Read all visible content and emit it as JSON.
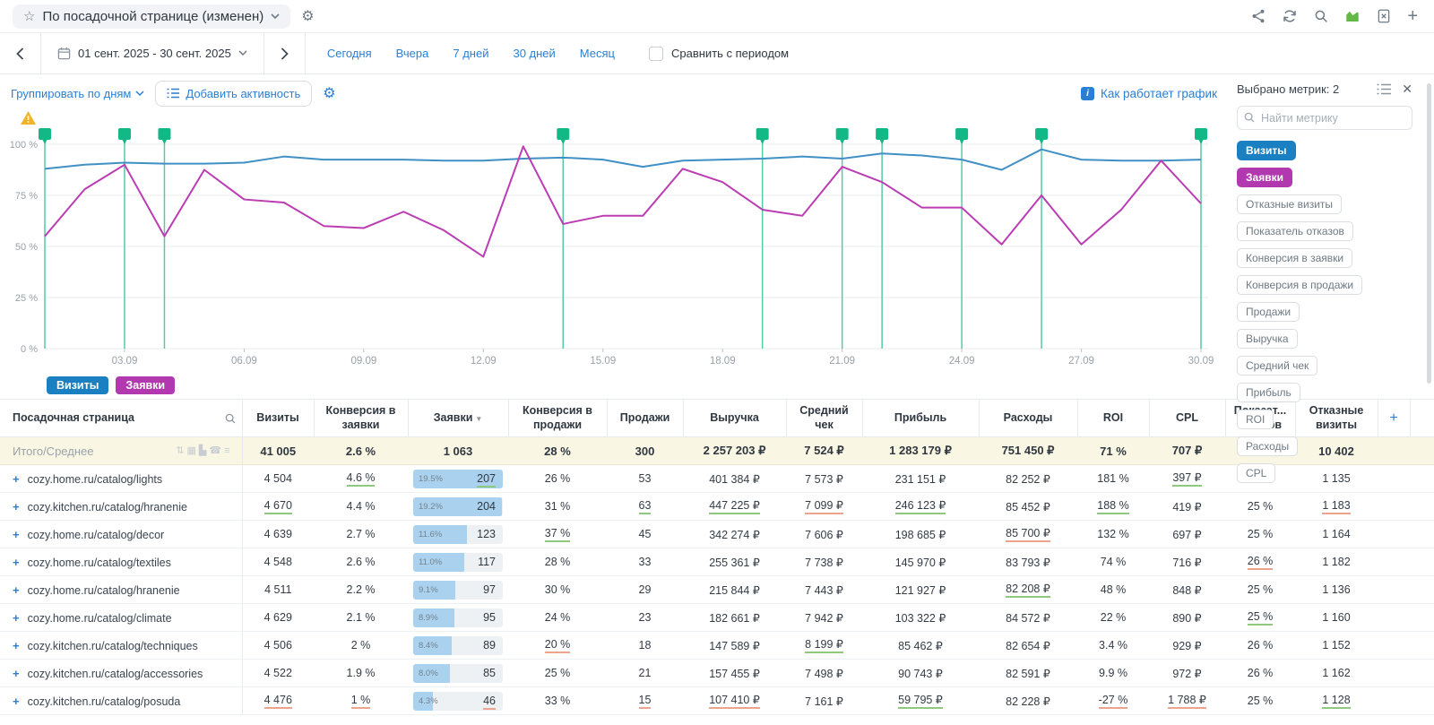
{
  "topbar": {
    "title": "По посадочной странице (изменен)",
    "icons": [
      "share",
      "refresh",
      "search",
      "chart-view",
      "excel-export",
      "add"
    ]
  },
  "toolbar": {
    "date_range": "01 сент. 2025 - 30 сент. 2025",
    "quick_links": [
      "Сегодня",
      "Вчера",
      "7 дней",
      "30 дней",
      "Месяц"
    ],
    "compare_label": "Сравнить с периодом"
  },
  "chart_controls": {
    "group_by": "Группировать по дням",
    "add_activity": "Добавить активность",
    "how_it_works": "Как работает график"
  },
  "metrics_panel": {
    "selected_label": "Выбрано метрик: 2",
    "search_placeholder": "Найти метрику",
    "chips": [
      {
        "label": "Визиты",
        "state": "blue"
      },
      {
        "label": "Заявки",
        "state": "magenta"
      },
      {
        "label": "Отказные визиты"
      },
      {
        "label": "Показатель отказов"
      },
      {
        "label": "Конверсия в заявки"
      },
      {
        "label": "Конверсия в продажи"
      },
      {
        "label": "Продажи"
      },
      {
        "label": "Выручка"
      },
      {
        "label": "Средний чек"
      },
      {
        "label": "Прибыль"
      },
      {
        "label": "ROI"
      },
      {
        "label": "Расходы"
      },
      {
        "label": "CPL"
      }
    ]
  },
  "chart_data": {
    "type": "line",
    "x": [
      "01.09",
      "02.09",
      "03.09",
      "04.09",
      "05.09",
      "06.09",
      "07.09",
      "08.09",
      "09.09",
      "10.09",
      "11.09",
      "12.09",
      "13.09",
      "14.09",
      "15.09",
      "16.09",
      "17.09",
      "18.09",
      "19.09",
      "20.09",
      "21.09",
      "22.09",
      "23.09",
      "24.09",
      "25.09",
      "26.09",
      "27.09",
      "28.09",
      "29.09",
      "30.09"
    ],
    "x_tick_labels": [
      "03.09",
      "06.09",
      "09.09",
      "12.09",
      "15.09",
      "18.09",
      "21.09",
      "24.09",
      "27.09",
      "30.09"
    ],
    "y_tick_labels": [
      "0 %",
      "25 %",
      "50 %",
      "75 %",
      "100 %"
    ],
    "ylim": [
      0,
      100
    ],
    "grid": true,
    "legend_position": "bottom-left",
    "series": [
      {
        "name": "Визиты",
        "color": "#4090c5",
        "values": [
          88,
          90,
          91,
          90.5,
          90.5,
          91,
          94,
          92.5,
          92.5,
          92.5,
          92,
          92,
          93,
          93.5,
          92.5,
          89,
          92,
          92.5,
          93,
          94,
          93,
          95.5,
          94.5,
          92.5,
          87.5,
          97.5,
          92.5,
          92,
          92,
          92.5
        ]
      },
      {
        "name": "Заявки",
        "color": "#bb3cb3",
        "values": [
          55,
          78,
          90,
          55,
          87.5,
          73,
          71.5,
          60,
          59,
          67,
          58,
          45,
          99,
          61,
          65,
          65,
          88,
          81.5,
          68,
          65,
          89,
          81.5,
          69,
          69,
          51,
          75,
          51,
          68,
          92,
          71
        ]
      }
    ],
    "event_marker_days": [
      1,
      3,
      4,
      14,
      19,
      21,
      22,
      24,
      26,
      30
    ],
    "event_marker_color": "#12b886"
  },
  "legend": [
    {
      "label": "Визиты",
      "color": "#1a80c2"
    },
    {
      "label": "Заявки",
      "color": "#b238b0"
    }
  ],
  "table": {
    "columns": [
      "Посадочная страница",
      "Визиты",
      "Конверсия в заявки",
      "Заявки",
      "Конверсия в продажи",
      "Продажи",
      "Выручка",
      "Средний чек",
      "Прибыль",
      "Расходы",
      "ROI",
      "CPL",
      "Показат... отказов",
      "Отказные визиты"
    ],
    "sorted_column": "Заявки",
    "add_label": "+",
    "totals_label": "Итого/Среднее",
    "totals_icons": [
      "sort",
      "grid",
      "chart",
      "phone",
      "list"
    ],
    "totals": [
      "41 005",
      "2.6 %",
      "1 063",
      "28 %",
      "300",
      "2 257 203 ₽",
      "7 524 ₽",
      "1 283 179 ₽",
      "751 450 ₽",
      "71 %",
      "707 ₽",
      "25 %",
      "10 402"
    ],
    "rows": [
      {
        "page": "cozy.home.ru/catalog/lights",
        "cells": [
          {
            "t": "4 504"
          },
          {
            "t": "4.6 %",
            "u": "g"
          },
          {
            "bar": true,
            "pct": "19.5%",
            "t": "207",
            "fill": 1.0,
            "u": "g"
          },
          {
            "t": "26 %"
          },
          {
            "t": "53"
          },
          {
            "t": "401 384 ₽"
          },
          {
            "t": "7 573 ₽"
          },
          {
            "t": "231 151 ₽"
          },
          {
            "t": "82 252 ₽"
          },
          {
            "t": "181 %"
          },
          {
            "t": "397 ₽",
            "u": "g"
          },
          {
            "t": "25 %"
          },
          {
            "t": "1 135"
          }
        ]
      },
      {
        "page": "cozy.kitchen.ru/catalog/hranenie",
        "cells": [
          {
            "t": "4 670",
            "u": "g"
          },
          {
            "t": "4.4 %"
          },
          {
            "bar": true,
            "pct": "19.2%",
            "t": "204",
            "fill": 0.985
          },
          {
            "t": "31 %"
          },
          {
            "t": "63",
            "u": "g"
          },
          {
            "t": "447 225 ₽",
            "u": "g"
          },
          {
            "t": "7 099 ₽",
            "u": "r"
          },
          {
            "t": "246 123 ₽",
            "u": "g"
          },
          {
            "t": "85 452 ₽"
          },
          {
            "t": "188 %",
            "u": "g"
          },
          {
            "t": "419 ₽"
          },
          {
            "t": "25 %"
          },
          {
            "t": "1 183",
            "u": "r"
          }
        ]
      },
      {
        "page": "cozy.home.ru/catalog/decor",
        "cells": [
          {
            "t": "4 639"
          },
          {
            "t": "2.7 %"
          },
          {
            "bar": true,
            "pct": "11.6%",
            "t": "123",
            "fill": 0.595
          },
          {
            "t": "37 %",
            "u": "g"
          },
          {
            "t": "45"
          },
          {
            "t": "342 274 ₽"
          },
          {
            "t": "7 606 ₽"
          },
          {
            "t": "198 685 ₽"
          },
          {
            "t": "85 700 ₽",
            "u": "r"
          },
          {
            "t": "132 %"
          },
          {
            "t": "697 ₽"
          },
          {
            "t": "25 %"
          },
          {
            "t": "1 164"
          }
        ]
      },
      {
        "page": "cozy.home.ru/catalog/textiles",
        "cells": [
          {
            "t": "4 548"
          },
          {
            "t": "2.6 %"
          },
          {
            "bar": true,
            "pct": "11.0%",
            "t": "117",
            "fill": 0.565
          },
          {
            "t": "28 %"
          },
          {
            "t": "33"
          },
          {
            "t": "255 361 ₽"
          },
          {
            "t": "7 738 ₽"
          },
          {
            "t": "145 970 ₽"
          },
          {
            "t": "83 793 ₽"
          },
          {
            "t": "74 %"
          },
          {
            "t": "716 ₽"
          },
          {
            "t": "26 %",
            "u": "r"
          },
          {
            "t": "1 182"
          }
        ]
      },
      {
        "page": "cozy.home.ru/catalog/hranenie",
        "cells": [
          {
            "t": "4 511"
          },
          {
            "t": "2.2 %"
          },
          {
            "bar": true,
            "pct": "9.1%",
            "t": "97",
            "fill": 0.467
          },
          {
            "t": "30 %"
          },
          {
            "t": "29"
          },
          {
            "t": "215 844 ₽"
          },
          {
            "t": "7 443 ₽"
          },
          {
            "t": "121 927 ₽"
          },
          {
            "t": "82 208 ₽",
            "u": "g"
          },
          {
            "t": "48 %"
          },
          {
            "t": "848 ₽"
          },
          {
            "t": "25 %"
          },
          {
            "t": "1 136"
          }
        ]
      },
      {
        "page": "cozy.home.ru/catalog/climate",
        "cells": [
          {
            "t": "4 629"
          },
          {
            "t": "2.1 %"
          },
          {
            "bar": true,
            "pct": "8.9%",
            "t": "95",
            "fill": 0.456
          },
          {
            "t": "24 %"
          },
          {
            "t": "23"
          },
          {
            "t": "182 661 ₽"
          },
          {
            "t": "7 942 ₽"
          },
          {
            "t": "103 322 ₽"
          },
          {
            "t": "84 572 ₽"
          },
          {
            "t": "22 %"
          },
          {
            "t": "890 ₽"
          },
          {
            "t": "25 %",
            "u": "g"
          },
          {
            "t": "1 160"
          }
        ]
      },
      {
        "page": "cozy.kitchen.ru/catalog/techniques",
        "cells": [
          {
            "t": "4 506"
          },
          {
            "t": "2 %"
          },
          {
            "bar": true,
            "pct": "8.4%",
            "t": "89",
            "fill": 0.431
          },
          {
            "t": "20 %",
            "u": "r"
          },
          {
            "t": "18"
          },
          {
            "t": "147 589 ₽"
          },
          {
            "t": "8 199 ₽",
            "u": "g"
          },
          {
            "t": "85 462 ₽"
          },
          {
            "t": "82 654 ₽"
          },
          {
            "t": "3.4 %"
          },
          {
            "t": "929 ₽"
          },
          {
            "t": "26 %"
          },
          {
            "t": "1 152"
          }
        ]
      },
      {
        "page": "cozy.kitchen.ru/catalog/accessories",
        "cells": [
          {
            "t": "4 522"
          },
          {
            "t": "1.9 %"
          },
          {
            "bar": true,
            "pct": "8.0%",
            "t": "85",
            "fill": 0.41
          },
          {
            "t": "25 %"
          },
          {
            "t": "21"
          },
          {
            "t": "157 455 ₽"
          },
          {
            "t": "7 498 ₽"
          },
          {
            "t": "90 743 ₽"
          },
          {
            "t": "82 591 ₽"
          },
          {
            "t": "9.9 %"
          },
          {
            "t": "972 ₽"
          },
          {
            "t": "26 %"
          },
          {
            "t": "1 162"
          }
        ]
      },
      {
        "page": "cozy.kitchen.ru/catalog/posuda",
        "cells": [
          {
            "t": "4 476",
            "u": "r"
          },
          {
            "t": "1 %",
            "u": "r"
          },
          {
            "bar": true,
            "pct": "4.3%",
            "t": "46",
            "fill": 0.22,
            "u": "r"
          },
          {
            "t": "33 %"
          },
          {
            "t": "15",
            "u": "r"
          },
          {
            "t": "107 410 ₽",
            "u": "r"
          },
          {
            "t": "7 161 ₽"
          },
          {
            "t": "59 795 ₽",
            "u": "g"
          },
          {
            "t": "82 228 ₽"
          },
          {
            "t": "-27 %",
            "u": "r"
          },
          {
            "t": "1 788 ₽",
            "u": "r"
          },
          {
            "t": "25 %"
          },
          {
            "t": "1 128",
            "u": "g"
          }
        ]
      }
    ]
  },
  "colors": {
    "accent_blue": "#2a7fd4",
    "chip_blue": "#1a80c2",
    "chip_magenta": "#b238b0",
    "line_blue": "#4090c5",
    "line_magenta": "#bb3cb3",
    "marker_green": "#12b886",
    "warning_yellow": "#f0b429",
    "underline_green": "#90c97e",
    "underline_red": "#eda48e",
    "totals_bg": "#faf6e4",
    "bar_fill": "#aad2ee"
  }
}
